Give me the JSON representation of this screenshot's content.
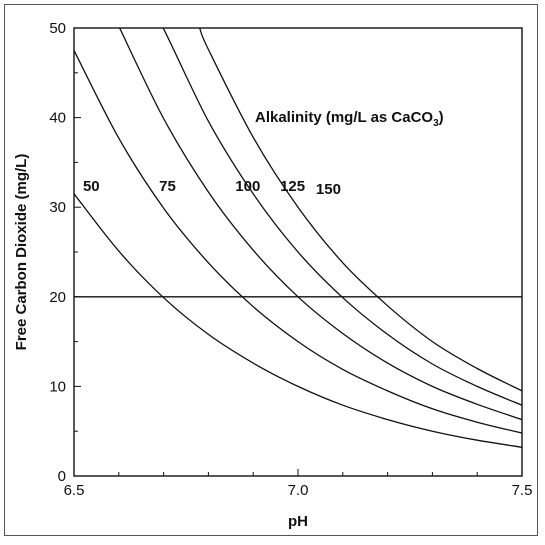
{
  "chart_data": {
    "type": "line",
    "title": "",
    "xlabel": "pH",
    "ylabel": "Free Carbon Dioxide (mg/L)",
    "xlim": [
      6.5,
      7.5
    ],
    "ylim": [
      0,
      50
    ],
    "x_ticks": [
      "6.5",
      "7.0",
      "7.5"
    ],
    "y_ticks": [
      "0",
      "10",
      "20",
      "30",
      "40",
      "50"
    ],
    "grid": false,
    "legend": "none",
    "annotation": {
      "text": "Alkalinity (mg/L as CaCO",
      "subscript": "3",
      "suffix": ")"
    },
    "reference_line": {
      "y": 20
    },
    "series": [
      {
        "name": "50",
        "x": [
          6.5,
          6.6,
          6.7,
          6.8,
          6.9,
          7.0,
          7.1,
          7.2,
          7.3,
          7.4,
          7.5
        ],
        "values": [
          31.5,
          25.1,
          19.9,
          15.8,
          12.6,
          10.0,
          7.9,
          6.3,
          5.0,
          4.0,
          3.2
        ],
        "label_x": 6.52,
        "label_y": 31.8
      },
      {
        "name": "75",
        "x": [
          6.5,
          6.6,
          6.7,
          6.8,
          6.9,
          7.0,
          7.1,
          7.2,
          7.3,
          7.4,
          7.5
        ],
        "values": [
          47.5,
          37.7,
          29.9,
          23.8,
          18.9,
          15.0,
          11.9,
          9.5,
          7.5,
          6.0,
          4.8
        ],
        "label_x": 6.69,
        "label_y": 31.8
      },
      {
        "name": "100",
        "x": [
          6.6,
          6.7,
          6.8,
          6.9,
          7.0,
          7.1,
          7.2,
          7.3,
          7.4,
          7.5
        ],
        "values": [
          50.2,
          39.9,
          31.7,
          25.2,
          20.0,
          15.9,
          12.6,
          10.0,
          8.0,
          6.3
        ],
        "label_x": 6.86,
        "label_y": 31.8
      },
      {
        "name": "125",
        "x": [
          6.68,
          6.7,
          6.8,
          6.9,
          7.0,
          7.1,
          7.2,
          7.3,
          7.4,
          7.5
        ],
        "values": [
          51.0,
          49.9,
          39.6,
          31.5,
          25.0,
          19.9,
          15.8,
          12.5,
          10.0,
          7.9
        ],
        "label_x": 6.96,
        "label_y": 31.8
      },
      {
        "name": "150",
        "x": [
          6.78,
          6.8,
          6.9,
          7.0,
          7.1,
          7.2,
          7.3,
          7.4,
          7.5
        ],
        "values": [
          50.1,
          47.6,
          37.8,
          30.0,
          23.8,
          19.0,
          15.0,
          12.0,
          9.5
        ],
        "label_x": 7.04,
        "label_y": 31.5
      }
    ]
  }
}
